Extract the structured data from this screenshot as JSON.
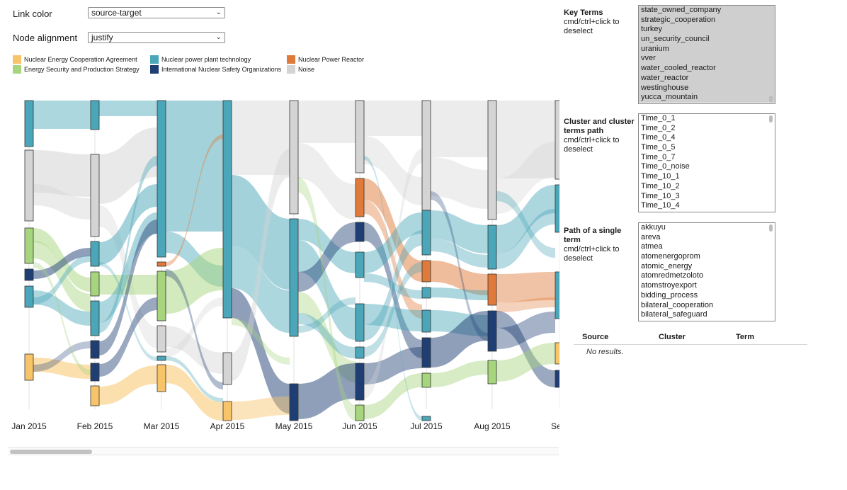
{
  "controls": {
    "link_color": {
      "label": "Link color",
      "value": "source-target"
    },
    "node_alignment": {
      "label": "Node alignment",
      "value": "justify"
    }
  },
  "legend": [
    {
      "label": "Nuclear Energy Cooperation Agreement",
      "color": "#f7c46a"
    },
    {
      "label": "Energy Security and Production Strategy",
      "color": "#a7d57e"
    },
    {
      "label": "Nuclear power plant technology",
      "color": "#4aa6b8"
    },
    {
      "label": "International Nuclear Safety Organizations",
      "color": "#1f3f74"
    },
    {
      "label": "Nuclear Power Reactor",
      "color": "#e07a3a"
    },
    {
      "label": "Noise",
      "color": "#d4d4d4"
    }
  ],
  "chart_data": {
    "type": "sankey",
    "time_axis": [
      "Jan 2015",
      "Feb 2015",
      "Mar 2015",
      "Apr 2015",
      "May 2015",
      "Jun 2015",
      "Jul 2015",
      "Aug 2015",
      "Sep"
    ],
    "categories": [
      "Nuclear Energy Cooperation Agreement",
      "Energy Security and Production Strategy",
      "Nuclear power plant technology",
      "International Nuclear Safety Organizations",
      "Nuclear Power Reactor",
      "Noise"
    ]
  },
  "side_panel": {
    "key_terms": {
      "title": "Key Terms",
      "hint": "cmd/ctrl+click to deselect",
      "options": [
        "state_owned_company",
        "strategic_cooperation",
        "turkey",
        "un_security_council",
        "uranium",
        "vver",
        "water_cooled_reactor",
        "water_reactor",
        "westinghouse",
        "yucca_mountain"
      ]
    },
    "cluster_terms": {
      "title": "Cluster and cluster terms path",
      "hint": "cmd/ctrl+click to deselect",
      "options": [
        "Time_0_1",
        "Time_0_2",
        "Time_0_4",
        "Time_0_5",
        "Time_0_7",
        "Time_0_noise",
        "Time_10_1",
        "Time_10_2",
        "Time_10_3",
        "Time_10_4"
      ]
    },
    "single_term": {
      "title": "Path of a single term",
      "hint": "cmd/ctrl+click to deselect",
      "options": [
        "akkuyu",
        "areva",
        "atmea",
        "atomenergoprom",
        "atomic_energy",
        "atomredmetzoloto",
        "atomstroyexport",
        "bidding_process",
        "bilateral_cooperation",
        "bilateral_safeguard"
      ]
    }
  },
  "results_table": {
    "headers": [
      "Source",
      "Cluster",
      "Term"
    ],
    "empty_text": "No results."
  }
}
